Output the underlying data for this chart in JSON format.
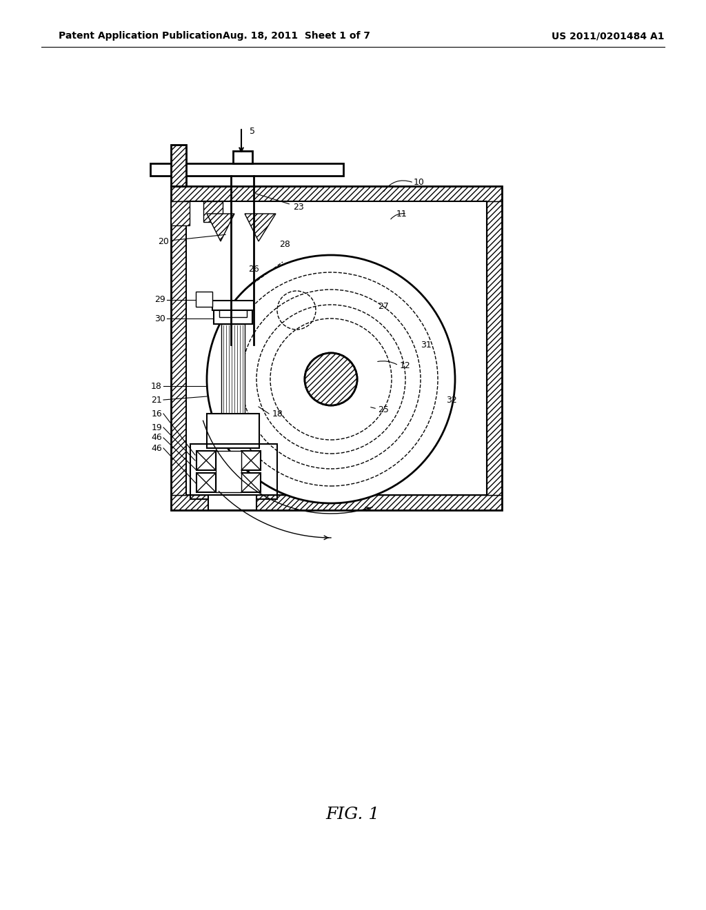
{
  "bg_color": "#ffffff",
  "line_color": "#000000",
  "hatch_color": "#000000",
  "header_left": "Patent Application Publication",
  "header_mid": "Aug. 18, 2011  Sheet 1 of 7",
  "header_right": "US 2011/0201484 A1",
  "fig_label": "FIG. 1",
  "title_fontsize": 10,
  "label_fontsize": 9,
  "fig_label_fontsize": 18
}
